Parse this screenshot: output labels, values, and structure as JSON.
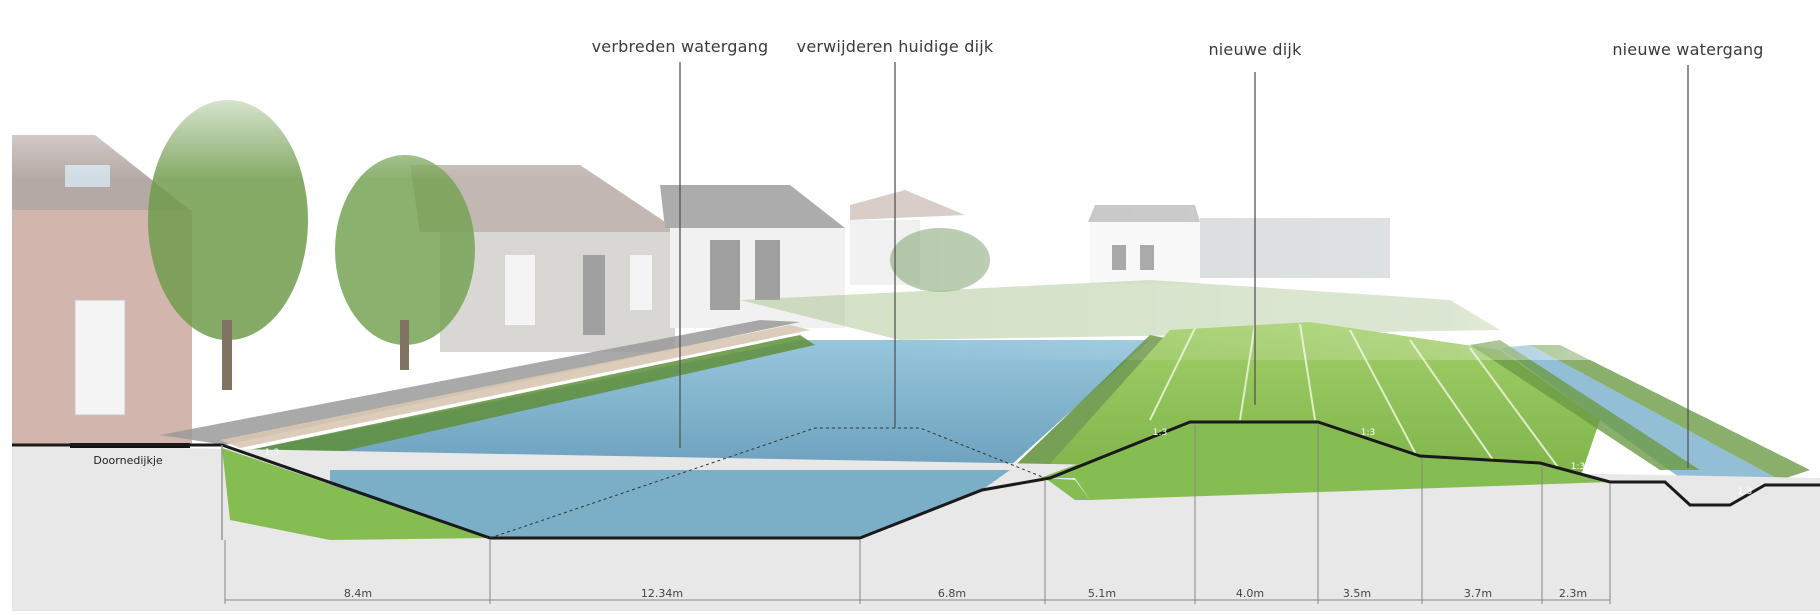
{
  "annotations": [
    {
      "key": "verbreden",
      "text": "verbreden watergang"
    },
    {
      "key": "verwijderen",
      "text": "verwijderen huidige dijk"
    },
    {
      "key": "nieuwe_dijk",
      "text": "nieuwe dijk"
    },
    {
      "key": "nieuwe_watergang",
      "text": "nieuwe watergang"
    }
  ],
  "road_label": "Doornedijkje",
  "dimensions": [
    "8.4m",
    "12.34m",
    "6.8m",
    "5.1m",
    "4.0m",
    "3.5m",
    "3.7m",
    "2.3m"
  ],
  "slope_marks": [
    "1:3",
    "1:3",
    "1:3",
    "1:3",
    "1:3"
  ],
  "colors": {
    "water": "#7fb3cc",
    "water_deep": "#6aa0bd",
    "grass": "#86bd52",
    "grass_light": "#a9cf6e",
    "ground": "#e9e9e9",
    "profile_line": "#222222",
    "house_brick": "#c9a9a0",
    "house_white": "#eeeeee",
    "tree": "#6e9a4e"
  }
}
